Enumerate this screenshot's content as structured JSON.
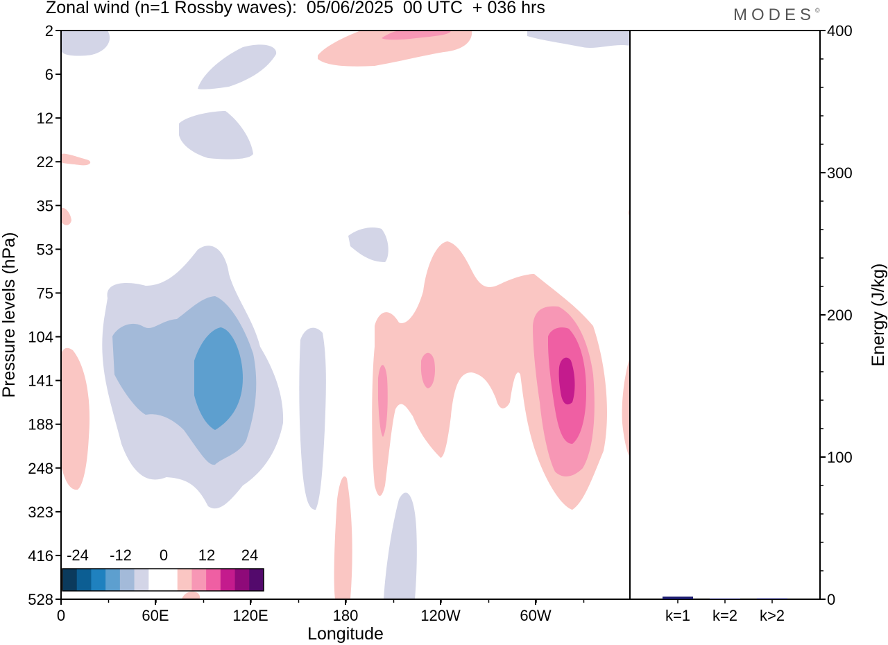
{
  "title": "Zonal wind (n=1 Rossby waves):  05/06/2025  00 UTC  + 036 hrs",
  "logo": {
    "text": "MODES",
    "mark": "©"
  },
  "chart_data": [
    {
      "type": "heatmap",
      "title": "Zonal wind (n=1 Rossby waves):  05/06/2025  00 UTC  + 036 hrs",
      "xlabel": "Longitude",
      "ylabel": "Pressure levels (hPa)",
      "x_ticks": [
        "0",
        "60E",
        "120E",
        "180",
        "120W",
        "60W"
      ],
      "y_ticks": [
        "2",
        "6",
        "12",
        "22",
        "35",
        "53",
        "75",
        "104",
        "141",
        "188",
        "248",
        "323",
        "416",
        "528"
      ],
      "xlim": [
        0,
        360
      ],
      "colorbar": {
        "labels": [
          "-24",
          "-12",
          "0",
          "12",
          "24"
        ],
        "colors": [
          "#0b3a5c",
          "#0c5e93",
          "#1f81bf",
          "#5d9fcf",
          "#a3bad9",
          "#d3d5e7",
          "#ffffff",
          "#ffffff",
          "#fac6c3",
          "#f797b5",
          "#ef5fa3",
          "#c41b8d",
          "#8e0a79",
          "#530a6c"
        ]
      },
      "features": [
        {
          "sign": "negative",
          "peak": -10,
          "lon_center": 100,
          "level_hPa": 141
        },
        {
          "sign": "positive",
          "peak": 16,
          "lon_center": 290,
          "level_hPa": 141
        },
        {
          "sign": "positive",
          "peak": 6,
          "lon_center": 210,
          "level_hPa": 104
        },
        {
          "sign": "negative",
          "peak": -3,
          "lon_center": 160,
          "level_hPa": 188
        },
        {
          "sign": "positive",
          "peak": 4,
          "lon_center": 208,
          "level_hPa": 2
        }
      ]
    },
    {
      "type": "bar",
      "categories": [
        "k=1",
        "k=2",
        "k>2"
      ],
      "values": [
        1.8,
        0.2,
        0.6
      ],
      "ylabel": "Energy (J/kg)",
      "ylim": [
        0,
        400
      ],
      "y_ticks": [
        "0",
        "100",
        "200",
        "300",
        "400"
      ],
      "colors": [
        "#1a1a6e",
        "#1a1a6e",
        "#1a1a6e"
      ]
    }
  ]
}
